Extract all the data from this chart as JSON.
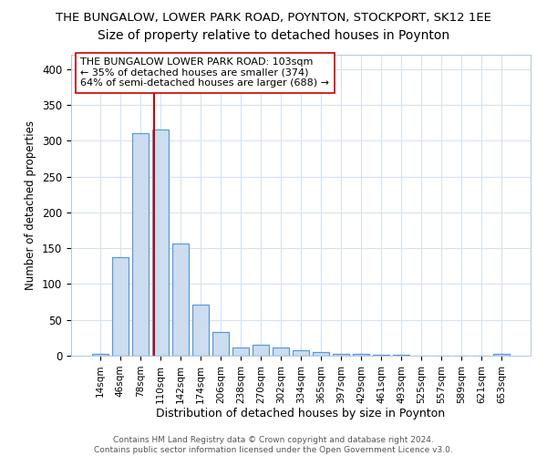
{
  "title1": "THE BUNGALOW, LOWER PARK ROAD, POYNTON, STOCKPORT, SK12 1EE",
  "title2": "Size of property relative to detached houses in Poynton",
  "xlabel": "Distribution of detached houses by size in Poynton",
  "ylabel": "Number of detached properties",
  "categories": [
    "14sqm",
    "46sqm",
    "78sqm",
    "110sqm",
    "142sqm",
    "174sqm",
    "206sqm",
    "238sqm",
    "270sqm",
    "302sqm",
    "334sqm",
    "365sqm",
    "397sqm",
    "429sqm",
    "461sqm",
    "493sqm",
    "525sqm",
    "557sqm",
    "589sqm",
    "621sqm",
    "653sqm"
  ],
  "values": [
    3,
    138,
    310,
    315,
    157,
    71,
    33,
    12,
    15,
    12,
    8,
    5,
    3,
    2,
    1,
    1,
    0,
    0,
    0,
    0,
    2
  ],
  "bar_color": "#ccddf0",
  "bar_edge_color": "#5b9bd5",
  "vline_x": 2.67,
  "vline_color": "#cc0000",
  "annotation_text": "THE BUNGALOW LOWER PARK ROAD: 103sqm\n← 35% of detached houses are smaller (374)\n64% of semi-detached houses are larger (688) →",
  "annotation_box_color": "#ffffff",
  "annotation_box_edge": "#cc0000",
  "footer": "Contains HM Land Registry data © Crown copyright and database right 2024.\nContains public sector information licensed under the Open Government Licence v3.0.",
  "ylim": [
    0,
    420
  ],
  "yticks": [
    0,
    50,
    100,
    150,
    200,
    250,
    300,
    350,
    400
  ],
  "title1_fontsize": 9.5,
  "title2_fontsize": 10,
  "background_color": "#ffffff",
  "grid_color": "#d5e3f0"
}
